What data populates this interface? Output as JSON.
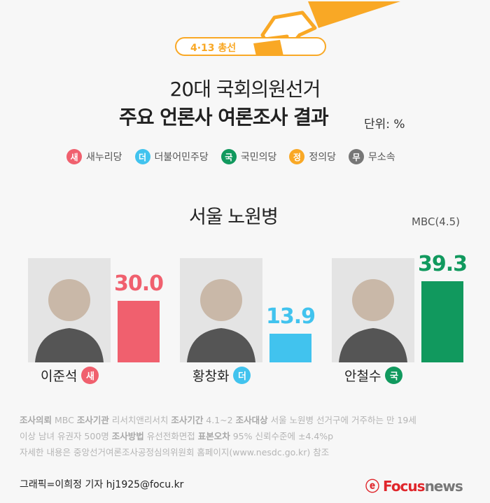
{
  "header": {
    "tag": "4·13 총선",
    "title_line1": "20대 국회의원선거",
    "title_line2": "주요 언론사 여론조사 결과",
    "unit": "단위: %"
  },
  "legend": [
    {
      "badge": "새",
      "label": "새누리당",
      "color": "#f0606e"
    },
    {
      "badge": "더",
      "label": "더불어민주당",
      "color": "#41c3ee"
    },
    {
      "badge": "국",
      "label": "국민의당",
      "color": "#11995e"
    },
    {
      "badge": "정",
      "label": "정의당",
      "color": "#f9a825"
    },
    {
      "badge": "무",
      "label": "무소속",
      "color": "#777777"
    }
  ],
  "chart_data": {
    "type": "bar",
    "title": "서울 노원병",
    "source": "MBC(4.5)",
    "categories": [
      "이준석",
      "황창화",
      "안철수"
    ],
    "values": [
      30.0,
      13.9,
      39.3
    ],
    "value_labels": [
      "30.0",
      "13.9",
      "39.3"
    ],
    "parties": [
      "새",
      "더",
      "국"
    ],
    "colors": [
      "#f0606e",
      "#41c3ee",
      "#11995e"
    ]
  },
  "notes": {
    "line1": [
      [
        "조사의뢰",
        " MBC "
      ],
      [
        "조사기관",
        " 리서치앤리서치 "
      ],
      [
        "조사기간",
        " 4.1~2  "
      ],
      [
        "조사대상",
        " 서울 노원병 선거구에 거주하는 만 19세"
      ]
    ],
    "line2": [
      [
        "",
        "이상 남녀 유권자 500명 "
      ],
      [
        "조사방법",
        " 유선전화면접 "
      ],
      [
        "표본오차",
        " 95% 신뢰수준에 ±4.4%p"
      ]
    ],
    "line3": "자세한 내용은 중앙선거여론조사공정심의위원회 홈페이지(www.nesdc.go.kr) 참조"
  },
  "footer": {
    "credit": "그래픽=이희정 기자 hj1925@focu.kr",
    "logo": "Focusnews"
  }
}
